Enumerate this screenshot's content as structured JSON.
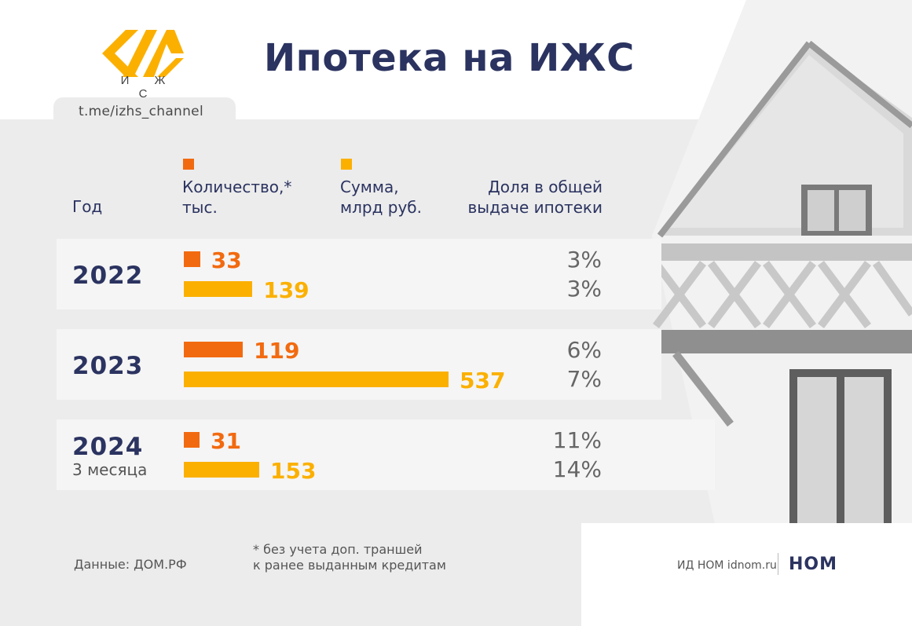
{
  "header": {
    "title": "Ипотека на ИЖС",
    "logo_caption": "И Ж С",
    "channel": "t.me/izhs_channel"
  },
  "columns": {
    "year": "Год",
    "count": "Количество,* тыс.",
    "count_line1": "Количество,*",
    "count_line2": "тыс.",
    "sum_line1": "Сумма,",
    "sum_line2": "млрд руб.",
    "share_line1": "Доля в общей",
    "share_line2": "выдаче ипотеки"
  },
  "colors": {
    "count": "#f26a10",
    "sum": "#fbb000",
    "navy": "#2b3360"
  },
  "rows": [
    {
      "year": "2022",
      "sub": "",
      "count": "33",
      "sum": "139",
      "count_share": "3%",
      "sum_share": "3%"
    },
    {
      "year": "2023",
      "sub": "",
      "count": "119",
      "sum": "537",
      "count_share": "6%",
      "sum_share": "7%"
    },
    {
      "year": "2024",
      "sub": "3 месяца",
      "count": "31",
      "sum": "153",
      "count_share": "11%",
      "sum_share": "14%"
    }
  ],
  "chart_data": {
    "type": "bar",
    "title": "Ипотека на ИЖС",
    "categories": [
      "2022",
      "2023",
      "2024"
    ],
    "series": [
      {
        "name": "Количество,* тыс.",
        "values": [
          33,
          119,
          31
        ],
        "shares": [
          "3%",
          "6%",
          "11%"
        ]
      },
      {
        "name": "Сумма, млрд руб.",
        "values": [
          139,
          537,
          153
        ],
        "shares": [
          "3%",
          "7%",
          "14%"
        ]
      }
    ]
  },
  "footer": {
    "source": "Данные: ДОМ.РФ",
    "note_line1": "* без учета доп. траншей",
    "note_line2": "к ранее выданным кредитам",
    "publisher": "ИД НОМ idnom.ru",
    "brand": "НОМ"
  }
}
